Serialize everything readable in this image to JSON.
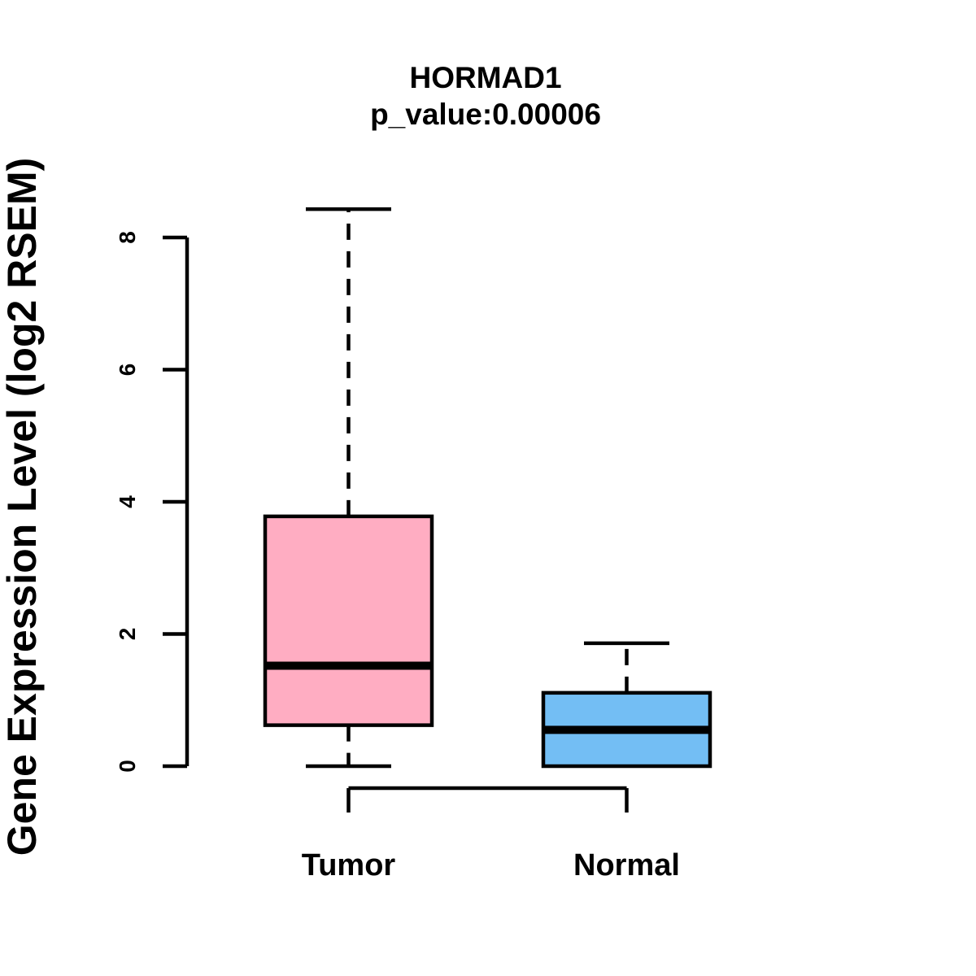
{
  "title": {
    "gene": "HORMAD1",
    "p_value_label": "p_value:0.00006"
  },
  "y_axis": {
    "label": "Gene Expression Level (log2 RSEM)",
    "tick_labels": [
      "0",
      "2",
      "4",
      "6",
      "8"
    ]
  },
  "x_axis": {
    "group_labels": [
      "Tumor",
      "Normal"
    ]
  },
  "colors": {
    "tumor_box": "#FFADC2",
    "normal_box": "#73BEF4",
    "line": "#000000",
    "background": "#FFFFFF"
  },
  "chart_data": {
    "type": "boxplot",
    "title": "HORMAD1",
    "subtitle": "p_value:0.00006",
    "ylabel": "Gene Expression Level (log2 RSEM)",
    "xlabel": "",
    "categories": [
      "Tumor",
      "Normal"
    ],
    "series": [
      {
        "name": "Tumor",
        "min": 0,
        "q1": 0.62,
        "median": 1.52,
        "q3": 3.78,
        "max": 8.43,
        "color": "#FFADC2"
      },
      {
        "name": "Normal",
        "min": 0,
        "q1": 0.0,
        "median": 0.55,
        "q3": 1.11,
        "max": 1.86,
        "color": "#73BEF4"
      }
    ],
    "ylim": [
      0,
      8
    ],
    "yticks": [
      0,
      2,
      4,
      6,
      8
    ],
    "grid": false,
    "legend": "none",
    "whisker_style": "dashed",
    "significance_bracket": {
      "between": [
        "Tumor",
        "Normal"
      ],
      "position": "below-axis"
    }
  }
}
